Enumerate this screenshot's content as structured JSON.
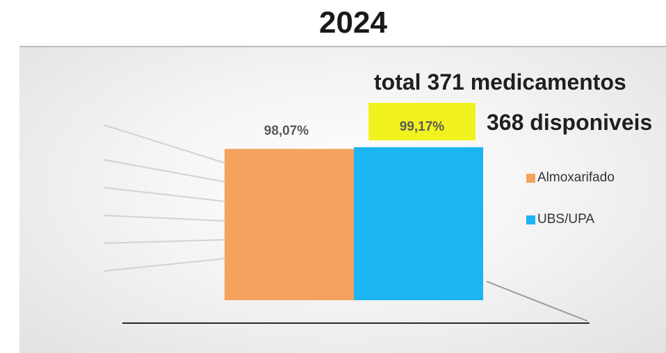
{
  "chart_data": {
    "type": "bar",
    "title": "2024",
    "categories": [
      ""
    ],
    "series": [
      {
        "name": "Almoxarifado",
        "values": [
          98.07
        ],
        "label": "98,07%",
        "color": "#f4a25e"
      },
      {
        "name": "UBS/UPA",
        "values": [
          99.17
        ],
        "label": "99,17%",
        "color": "#1db4f2",
        "label_highlight": "#f2f21e"
      }
    ],
    "ylim": [
      0,
      100
    ],
    "annotations": [
      "total 371 medicamentos",
      "368 disponiveis"
    ],
    "legend_position": "right",
    "grid": false
  }
}
